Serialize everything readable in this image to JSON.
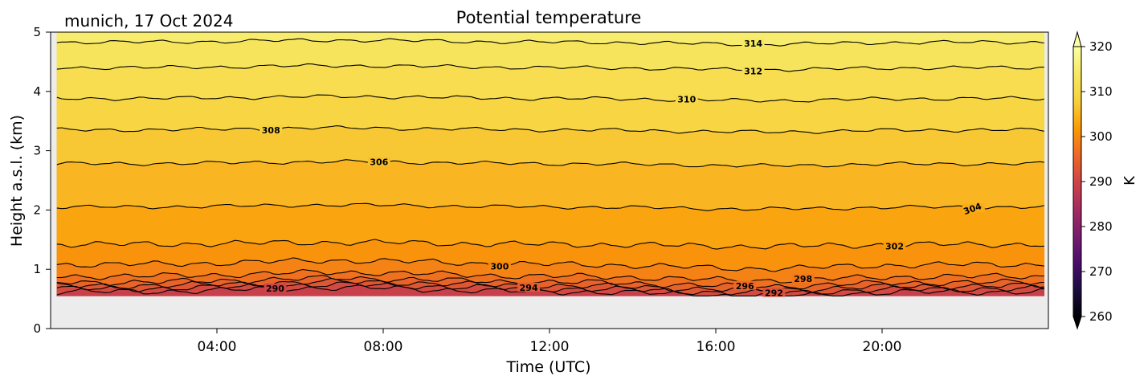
{
  "chart_data": {
    "type": "heatmap",
    "title": "Potential temperature",
    "subtitle": "munich, 17 Oct 2024",
    "xlabel": "Time (UTC)",
    "ylabel": "Height a.s.l. (km)",
    "xlim_hours": [
      0,
      24
    ],
    "ylim_km": [
      0,
      5
    ],
    "x_ticks": [
      {
        "hour": 4,
        "label": "04:00"
      },
      {
        "hour": 8,
        "label": "08:00"
      },
      {
        "hour": 12,
        "label": "12:00"
      },
      {
        "hour": 16,
        "label": "16:00"
      },
      {
        "hour": 20,
        "label": "20:00"
      }
    ],
    "y_ticks": [
      {
        "value": 0,
        "label": "0"
      },
      {
        "value": 1,
        "label": "1"
      },
      {
        "value": 2,
        "label": "2"
      },
      {
        "value": 3,
        "label": "3"
      },
      {
        "value": 4,
        "label": "4"
      },
      {
        "value": 5,
        "label": "5"
      }
    ],
    "data_time_range_hours": [
      0.15,
      23.9
    ],
    "data_lowest_height_km": 0.55,
    "colormap": "inferno",
    "colorbar": {
      "label": "K",
      "vmin": 260,
      "vmax": 320,
      "extend": "both",
      "ticks": [
        260,
        270,
        280,
        290,
        300,
        310,
        320
      ]
    },
    "contour_levels": [
      {
        "level": 290,
        "height_km": 0.62,
        "label": "290",
        "label_hour": 5.4
      },
      {
        "level": 292,
        "height_km": 0.67,
        "label": "292",
        "label_hour": 17.4
      },
      {
        "level": 294,
        "height_km": 0.72,
        "label": "294",
        "label_hour": 11.5
      },
      {
        "level": 296,
        "height_km": 0.78,
        "label": "296",
        "label_hour": 16.7
      },
      {
        "level": 298,
        "height_km": 0.88,
        "label": "298",
        "label_hour": 18.1
      },
      {
        "level": 300,
        "height_km": 1.08,
        "label": "300",
        "label_hour": 10.8
      },
      {
        "level": 302,
        "height_km": 1.42,
        "label": "302",
        "label_hour": 20.3
      },
      {
        "level": 304,
        "height_km": 2.05,
        "label": "304",
        "label_hour": 22.2
      },
      {
        "level": 306,
        "height_km": 2.78,
        "label": "306",
        "label_hour": 7.9
      },
      {
        "level": 308,
        "height_km": 3.35,
        "label": "308",
        "label_hour": 5.3
      },
      {
        "level": 310,
        "height_km": 3.88,
        "label": "310",
        "label_hour": 15.3
      },
      {
        "level": 312,
        "height_km": 4.4,
        "label": "312",
        "label_hour": 16.9
      },
      {
        "level": 314,
        "height_km": 4.83,
        "label": "314",
        "label_hour": 16.9
      }
    ],
    "missing_data_color": "#ececec",
    "contour_color": "#000000"
  }
}
